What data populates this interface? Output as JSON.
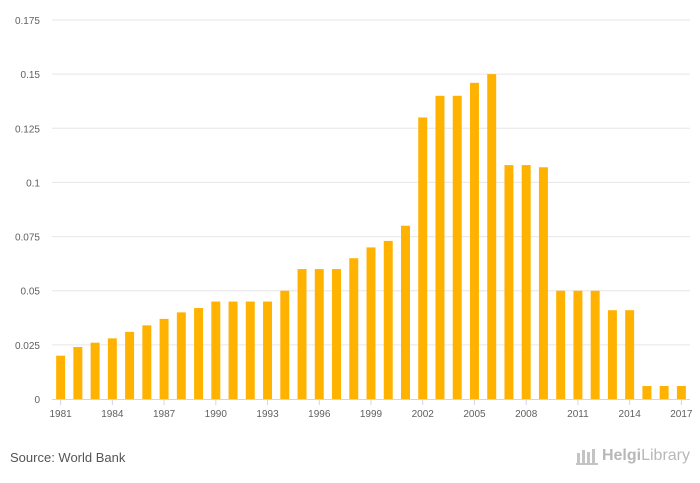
{
  "chart_data": {
    "type": "bar",
    "categories": [
      "1981",
      "1982",
      "1983",
      "1984",
      "1985",
      "1986",
      "1987",
      "1988",
      "1989",
      "1990",
      "1991",
      "1992",
      "1993",
      "1994",
      "1995",
      "1996",
      "1997",
      "1998",
      "1999",
      "2000",
      "2001",
      "2002",
      "2003",
      "2004",
      "2005",
      "2006",
      "2007",
      "2008",
      "2009",
      "2010",
      "2011",
      "2012",
      "2013",
      "2014",
      "2015",
      "2016",
      "2017"
    ],
    "x_tick_labels": [
      "1981",
      "1984",
      "1987",
      "1990",
      "1993",
      "1996",
      "1999",
      "2002",
      "2005",
      "2008",
      "2011",
      "2014",
      "2017"
    ],
    "values": [
      0.02,
      0.024,
      0.026,
      0.028,
      0.031,
      0.034,
      0.037,
      0.04,
      0.042,
      0.045,
      0.045,
      0.045,
      0.045,
      0.05,
      0.06,
      0.06,
      0.06,
      0.065,
      0.07,
      0.073,
      0.08,
      0.13,
      0.14,
      0.14,
      0.146,
      0.15,
      0.108,
      0.108,
      0.107,
      0.05,
      0.05,
      0.05,
      0.041,
      0.041,
      0.006,
      0.006,
      0.006
    ],
    "y_tick_labels": [
      "0",
      "0.025",
      "0.05",
      "0.075",
      "0.1",
      "0.125",
      "0.15",
      "0.175"
    ],
    "ylim": [
      0,
      0.175
    ],
    "title": "",
    "xlabel": "",
    "ylabel": "",
    "grid": true,
    "bar_color": "#ffb300",
    "grid_color": "#e6e6e6"
  },
  "footer": {
    "source": "Source: World Bank",
    "brand_strong": "Helgi",
    "brand_light": "Library"
  }
}
